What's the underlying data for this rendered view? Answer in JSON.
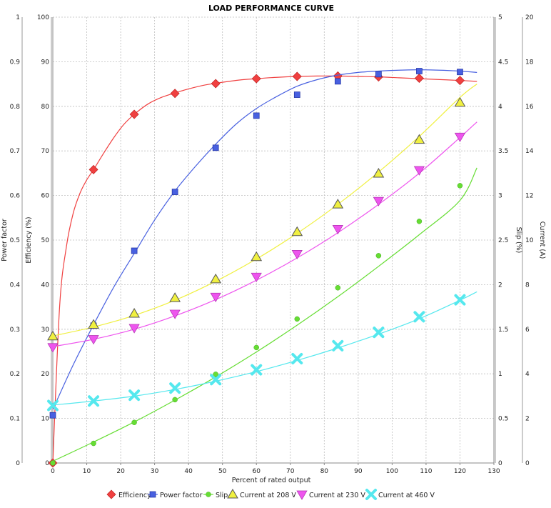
{
  "chart_data": {
    "type": "line",
    "title": "LOAD PERFORMANCE CURVE",
    "xlabel": "Percent of rated output",
    "xlim": [
      0,
      130
    ],
    "xticks": [
      0,
      10,
      20,
      30,
      40,
      50,
      60,
      70,
      80,
      90,
      100,
      110,
      120,
      130
    ],
    "grid": true,
    "legend_position": "bottom",
    "axes": [
      {
        "id": "pf",
        "label": "Power factor",
        "side": "left",
        "range": [
          0,
          1
        ],
        "ticks": [
          "0",
          "0.1",
          "0.2",
          "0.3",
          "0.4",
          "0.5",
          "0.6",
          "0.7",
          "0.8",
          "0.9",
          "1"
        ]
      },
      {
        "id": "eff",
        "label": "Efficiency (%)",
        "side": "left",
        "range": [
          0,
          100
        ],
        "ticks": [
          "0",
          "10",
          "20",
          "30",
          "40",
          "50",
          "60",
          "70",
          "80",
          "90",
          "100"
        ]
      },
      {
        "id": "slip",
        "label": "Slip (%)",
        "side": "right",
        "range": [
          0,
          5
        ],
        "ticks": [
          "0",
          "0.5",
          "1",
          "1.5",
          "2",
          "2.5",
          "3",
          "3.5",
          "4",
          "4.5",
          "5"
        ]
      },
      {
        "id": "cur",
        "label": "Current (A)",
        "side": "right",
        "range": [
          0,
          20
        ],
        "ticks": [
          "0",
          "2",
          "4",
          "6",
          "8",
          "10",
          "12",
          "14",
          "16",
          "18",
          "20"
        ]
      }
    ],
    "series": [
      {
        "name": "Efficiency",
        "axis": "eff",
        "color": "#f04040",
        "marker": "diamond",
        "points": [
          [
            0,
            0
          ],
          [
            12,
            65.8
          ],
          [
            24,
            78.2
          ],
          [
            36,
            82.9
          ],
          [
            48,
            85.1
          ],
          [
            60,
            86.2
          ],
          [
            72,
            86.7
          ],
          [
            84,
            86.8
          ],
          [
            96,
            86.6
          ],
          [
            108,
            86.3
          ],
          [
            120,
            85.8
          ]
        ],
        "curve": [
          [
            0,
            0
          ],
          [
            2,
            35
          ],
          [
            4,
            48.5
          ],
          [
            6,
            56
          ],
          [
            8,
            60.5
          ],
          [
            10,
            63.5
          ],
          [
            12,
            65.8
          ],
          [
            15,
            69.5
          ],
          [
            18,
            73
          ],
          [
            21,
            76
          ],
          [
            24,
            78.2
          ],
          [
            28,
            80.5
          ],
          [
            32,
            82
          ],
          [
            36,
            83
          ],
          [
            40,
            83.9
          ],
          [
            45,
            84.8
          ],
          [
            50,
            85.4
          ],
          [
            55,
            85.9
          ],
          [
            60,
            86.2
          ],
          [
            66,
            86.5
          ],
          [
            72,
            86.7
          ],
          [
            78,
            86.8
          ],
          [
            84,
            86.8
          ],
          [
            90,
            86.7
          ],
          [
            96,
            86.6
          ],
          [
            102,
            86.4
          ],
          [
            108,
            86.2
          ],
          [
            114,
            86.0
          ],
          [
            120,
            85.8
          ],
          [
            125,
            85.6
          ]
        ]
      },
      {
        "name": "Power factor",
        "axis": "pf",
        "color": "#4860e0",
        "marker": "square",
        "points": [
          [
            0,
            0.107
          ],
          [
            12,
            0.308
          ],
          [
            24,
            0.476
          ],
          [
            36,
            0.608
          ],
          [
            48,
            0.707
          ],
          [
            60,
            0.779
          ],
          [
            72,
            0.826
          ],
          [
            84,
            0.856
          ],
          [
            96,
            0.872
          ],
          [
            108,
            0.879
          ],
          [
            120,
            0.877
          ]
        ],
        "curve": [
          [
            0,
            0.12
          ],
          [
            6,
            0.22
          ],
          [
            12,
            0.31
          ],
          [
            18,
            0.395
          ],
          [
            24,
            0.47
          ],
          [
            30,
            0.545
          ],
          [
            36,
            0.61
          ],
          [
            42,
            0.665
          ],
          [
            48,
            0.715
          ],
          [
            54,
            0.76
          ],
          [
            60,
            0.795
          ],
          [
            66,
            0.822
          ],
          [
            72,
            0.845
          ],
          [
            78,
            0.86
          ],
          [
            84,
            0.87
          ],
          [
            90,
            0.876
          ],
          [
            96,
            0.879
          ],
          [
            102,
            0.881
          ],
          [
            108,
            0.882
          ],
          [
            114,
            0.881
          ],
          [
            120,
            0.879
          ],
          [
            125,
            0.876
          ]
        ]
      },
      {
        "name": "Slip",
        "axis": "slip",
        "color": "#66dd33",
        "marker": "circle",
        "points": [
          [
            0,
            0
          ],
          [
            12,
            0.22
          ],
          [
            24,
            0.455
          ],
          [
            36,
            0.71
          ],
          [
            48,
            0.995
          ],
          [
            60,
            1.295
          ],
          [
            72,
            1.615
          ],
          [
            84,
            1.965
          ],
          [
            96,
            2.325
          ],
          [
            108,
            2.71
          ],
          [
            120,
            3.11
          ]
        ],
        "curve": [
          [
            0,
            0.02
          ],
          [
            12,
            0.235
          ],
          [
            24,
            0.46
          ],
          [
            36,
            0.705
          ],
          [
            48,
            0.965
          ],
          [
            60,
            1.245
          ],
          [
            72,
            1.545
          ],
          [
            84,
            1.865
          ],
          [
            96,
            2.205
          ],
          [
            108,
            2.56
          ],
          [
            120,
            2.945
          ],
          [
            125,
            3.31
          ]
        ]
      },
      {
        "name": "Current at 208 V",
        "axis": "cur",
        "color": "#f0f040",
        "marker": "triangle-up",
        "points": [
          [
            0,
            5.68
          ],
          [
            12,
            6.2
          ],
          [
            24,
            6.7
          ],
          [
            36,
            7.4
          ],
          [
            48,
            8.24
          ],
          [
            60,
            9.24
          ],
          [
            72,
            10.36
          ],
          [
            84,
            11.6
          ],
          [
            96,
            12.98
          ],
          [
            108,
            14.5
          ],
          [
            120,
            16.16
          ]
        ],
        "curve": [
          [
            0,
            5.7
          ],
          [
            12,
            6.1
          ],
          [
            24,
            6.62
          ],
          [
            36,
            7.3
          ],
          [
            48,
            8.15
          ],
          [
            60,
            9.15
          ],
          [
            72,
            10.3
          ],
          [
            84,
            11.6
          ],
          [
            96,
            13.05
          ],
          [
            108,
            14.65
          ],
          [
            120,
            16.4
          ],
          [
            125,
            17.0
          ]
        ]
      },
      {
        "name": "Current at 230 V",
        "axis": "cur",
        "color": "#ee55ee",
        "marker": "triangle-down",
        "points": [
          [
            0,
            5.2
          ],
          [
            12,
            5.56
          ],
          [
            24,
            6.06
          ],
          [
            36,
            6.7
          ],
          [
            48,
            7.46
          ],
          [
            60,
            8.36
          ],
          [
            72,
            9.38
          ],
          [
            84,
            10.5
          ],
          [
            96,
            11.76
          ],
          [
            108,
            13.14
          ],
          [
            120,
            14.64
          ]
        ],
        "curve": [
          [
            0,
            5.22
          ],
          [
            12,
            5.55
          ],
          [
            24,
            6.0
          ],
          [
            36,
            6.6
          ],
          [
            48,
            7.33
          ],
          [
            60,
            8.2
          ],
          [
            72,
            9.2
          ],
          [
            84,
            10.33
          ],
          [
            96,
            11.6
          ],
          [
            108,
            13.0
          ],
          [
            120,
            14.6
          ],
          [
            125,
            15.3
          ]
        ]
      },
      {
        "name": "Current at 460 V",
        "axis": "cur",
        "color": "#55e8ee",
        "marker": "x",
        "points": [
          [
            0,
            2.58
          ],
          [
            12,
            2.78
          ],
          [
            24,
            3.04
          ],
          [
            36,
            3.36
          ],
          [
            48,
            3.74
          ],
          [
            60,
            4.18
          ],
          [
            72,
            4.68
          ],
          [
            84,
            5.26
          ],
          [
            96,
            5.86
          ],
          [
            108,
            6.56
          ],
          [
            120,
            7.32
          ]
        ],
        "curve": [
          [
            0,
            2.6
          ],
          [
            12,
            2.78
          ],
          [
            24,
            3.0
          ],
          [
            36,
            3.3
          ],
          [
            48,
            3.67
          ],
          [
            60,
            4.1
          ],
          [
            72,
            4.6
          ],
          [
            84,
            5.16
          ],
          [
            96,
            5.78
          ],
          [
            108,
            6.47
          ],
          [
            120,
            7.3
          ],
          [
            125,
            7.68
          ]
        ]
      }
    ]
  }
}
